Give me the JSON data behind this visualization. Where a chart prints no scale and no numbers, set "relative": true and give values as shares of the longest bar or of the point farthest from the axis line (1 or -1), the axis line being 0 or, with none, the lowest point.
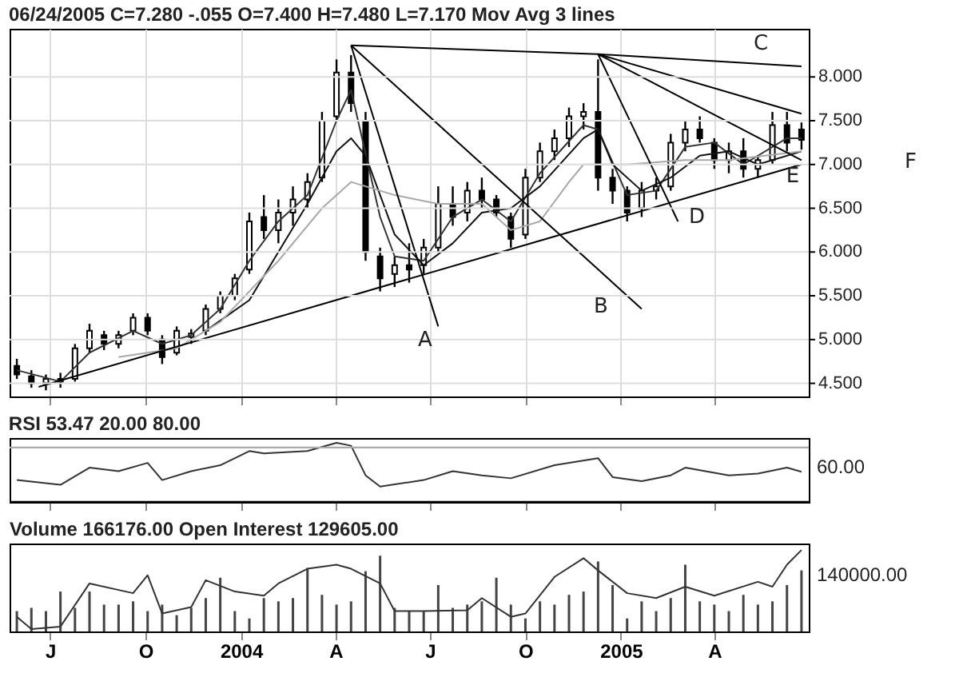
{
  "chart_data": [
    {
      "type": "candlestick",
      "title": "06/24/2005  C=7.280  -.055  O=7.400  H=7.480  L=7.170  Mov Avg 3 lines",
      "color": "#000000",
      "x": [
        "2003-05-30",
        "2003-06-13",
        "2003-06-27",
        "2003-07-11",
        "2003-07-25",
        "2003-08-08",
        "2003-08-22",
        "2003-09-05",
        "2003-09-19",
        "2003-10-03",
        "2003-10-17",
        "2003-10-31",
        "2003-11-14",
        "2003-11-28",
        "2003-12-12",
        "2003-12-26",
        "2004-01-09",
        "2004-01-23",
        "2004-02-06",
        "2004-02-20",
        "2004-03-05",
        "2004-03-19",
        "2004-04-02",
        "2004-04-16",
        "2004-04-30",
        "2004-05-14",
        "2004-05-28",
        "2004-06-11",
        "2004-06-25",
        "2004-07-09",
        "2004-07-23",
        "2004-08-06",
        "2004-08-20",
        "2004-09-03",
        "2004-09-17",
        "2004-10-01",
        "2004-10-15",
        "2004-10-29",
        "2004-11-12",
        "2004-11-26",
        "2004-12-10",
        "2004-12-24",
        "2005-01-07",
        "2005-01-21",
        "2005-02-04",
        "2005-02-18",
        "2005-03-04",
        "2005-03-18",
        "2005-04-01",
        "2005-04-15",
        "2005-04-29",
        "2005-05-13",
        "2005-05-27",
        "2005-06-10",
        "2005-06-24"
      ],
      "ohlc": [
        [
          4.7,
          4.78,
          4.55,
          4.6
        ],
        [
          4.58,
          4.65,
          4.45,
          4.5
        ],
        [
          4.5,
          4.6,
          4.42,
          4.55
        ],
        [
          4.55,
          4.62,
          4.45,
          4.52
        ],
        [
          4.55,
          4.95,
          4.52,
          4.9
        ],
        [
          4.9,
          5.18,
          4.85,
          5.1
        ],
        [
          5.05,
          5.1,
          4.88,
          4.95
        ],
        [
          4.95,
          5.1,
          4.9,
          5.05
        ],
        [
          5.1,
          5.3,
          5.05,
          5.25
        ],
        [
          5.25,
          5.3,
          5.05,
          5.1
        ],
        [
          5.0,
          5.05,
          4.72,
          4.8
        ],
        [
          4.85,
          5.15,
          4.82,
          5.1
        ],
        [
          5.03,
          5.12,
          4.95,
          5.07
        ],
        [
          5.1,
          5.4,
          5.05,
          5.35
        ],
        [
          5.35,
          5.55,
          5.3,
          5.5
        ],
        [
          5.5,
          5.75,
          5.45,
          5.7
        ],
        [
          5.8,
          6.45,
          5.75,
          6.35
        ],
        [
          6.4,
          6.65,
          6.15,
          6.25
        ],
        [
          6.25,
          6.6,
          6.1,
          6.45
        ],
        [
          6.45,
          6.75,
          6.3,
          6.6
        ],
        [
          6.6,
          6.9,
          6.5,
          6.8
        ],
        [
          6.85,
          7.6,
          6.8,
          7.5
        ],
        [
          7.55,
          8.2,
          7.5,
          8.05
        ],
        [
          8.05,
          8.25,
          7.6,
          7.7
        ],
        [
          7.5,
          7.6,
          5.9,
          6.0
        ],
        [
          5.95,
          6.05,
          5.55,
          5.7
        ],
        [
          5.75,
          5.95,
          5.6,
          5.85
        ],
        [
          5.85,
          6.1,
          5.65,
          5.8
        ],
        [
          5.85,
          6.15,
          5.75,
          6.05
        ],
        [
          6.05,
          6.75,
          6.0,
          6.55
        ],
        [
          6.55,
          6.75,
          6.3,
          6.4
        ],
        [
          6.45,
          6.8,
          6.35,
          6.7
        ],
        [
          6.7,
          6.85,
          6.5,
          6.6
        ],
        [
          6.6,
          6.65,
          6.4,
          6.45
        ],
        [
          6.4,
          6.45,
          6.05,
          6.15
        ],
        [
          6.2,
          6.95,
          6.15,
          6.85
        ],
        [
          6.85,
          7.25,
          6.8,
          7.15
        ],
        [
          7.15,
          7.4,
          7.05,
          7.3
        ],
        [
          7.3,
          7.65,
          7.2,
          7.55
        ],
        [
          7.55,
          7.7,
          7.4,
          7.6
        ],
        [
          7.6,
          8.2,
          6.7,
          6.85
        ],
        [
          6.85,
          6.95,
          6.55,
          6.7
        ],
        [
          6.7,
          6.75,
          6.35,
          6.45
        ],
        [
          6.5,
          6.8,
          6.4,
          6.7
        ],
        [
          6.7,
          6.85,
          6.6,
          6.75
        ],
        [
          6.75,
          7.35,
          6.7,
          7.25
        ],
        [
          7.25,
          7.5,
          7.15,
          7.4
        ],
        [
          7.4,
          7.55,
          7.25,
          7.3
        ],
        [
          7.25,
          7.3,
          6.95,
          7.05
        ],
        [
          7.05,
          7.25,
          6.9,
          7.15
        ],
        [
          7.15,
          7.3,
          6.85,
          6.95
        ],
        [
          6.95,
          7.1,
          6.85,
          7.05
        ],
        [
          7.05,
          7.6,
          7.0,
          7.45
        ],
        [
          7.45,
          7.6,
          7.15,
          7.25
        ],
        [
          7.4,
          7.48,
          7.17,
          7.28
        ]
      ],
      "series": [
        {
          "type": "line",
          "color": "#333333",
          "x": [
            "2003-05-30",
            "2003-07-11",
            "2003-08-08",
            "2003-09-19",
            "2003-10-17",
            "2003-11-14",
            "2003-12-12",
            "2004-01-09",
            "2004-02-06",
            "2004-03-05",
            "2004-04-02",
            "2004-04-16",
            "2004-05-14",
            "2004-05-28",
            "2004-06-25",
            "2004-07-23",
            "2004-08-20",
            "2004-09-17",
            "2004-10-15",
            "2004-11-26",
            "2004-12-10",
            "2005-01-07",
            "2005-02-04",
            "2005-03-04",
            "2005-04-01",
            "2005-04-29",
            "2005-06-10",
            "2005-06-24"
          ],
          "values": [
            4.65,
            4.52,
            4.85,
            5.1,
            4.95,
            5.05,
            5.35,
            5.9,
            6.35,
            6.65,
            7.5,
            7.85,
            6.4,
            5.95,
            5.9,
            6.4,
            6.6,
            6.35,
            6.9,
            7.45,
            7.4,
            6.65,
            6.7,
            7.2,
            7.25,
            7.0,
            7.3,
            7.3
          ]
        },
        {
          "type": "line",
          "color": "#111111",
          "x": [
            "2003-11-28",
            "2004-01-09",
            "2004-02-06",
            "2004-03-05",
            "2004-04-02",
            "2004-04-16",
            "2004-04-30",
            "2004-05-28",
            "2004-06-25",
            "2004-07-23",
            "2004-08-20",
            "2004-09-17",
            "2004-10-15",
            "2004-11-26",
            "2004-12-10",
            "2004-12-24",
            "2005-01-21",
            "2005-02-18",
            "2005-03-18",
            "2005-04-15",
            "2005-05-13",
            "2005-06-24"
          ],
          "values": [
            5.1,
            5.45,
            6.0,
            6.55,
            7.15,
            7.3,
            7.1,
            6.2,
            5.85,
            6.1,
            6.45,
            6.5,
            6.75,
            7.3,
            7.4,
            7.0,
            6.7,
            6.85,
            7.1,
            7.15,
            7.0,
            7.15
          ]
        },
        {
          "type": "line",
          "color": "#a8a8a8",
          "x": [
            "2003-09-05",
            "2003-10-31",
            "2003-12-12",
            "2004-02-06",
            "2004-03-19",
            "2004-04-16",
            "2004-05-28",
            "2004-07-09",
            "2004-08-20",
            "2004-09-17",
            "2004-10-15",
            "2004-11-12",
            "2004-11-26",
            "2005-01-07",
            "2005-03-04",
            "2005-04-15",
            "2005-06-24"
          ],
          "values": [
            4.8,
            4.9,
            5.2,
            5.9,
            6.5,
            6.8,
            6.65,
            6.55,
            6.55,
            6.25,
            6.35,
            6.8,
            7.0,
            7.0,
            7.05,
            7.05,
            7.15
          ]
        },
        {
          "type": "line",
          "color": "#000000",
          "x": [
            "2003-06-20",
            "2005-06-24"
          ],
          "values": [
            4.46,
            7.0
          ]
        },
        {
          "type": "line",
          "color": "#000000",
          "x": [
            "2004-04-16",
            "2004-07-09"
          ],
          "values": [
            8.36,
            5.15
          ]
        },
        {
          "type": "line",
          "color": "#000000",
          "x": [
            "2004-04-16",
            "2005-01-21"
          ],
          "values": [
            8.36,
            5.35
          ]
        },
        {
          "type": "line",
          "color": "#000000",
          "x": [
            "2004-04-16",
            "2004-12-10",
            "2005-06-24"
          ],
          "values": [
            8.36,
            8.26,
            8.12
          ]
        },
        {
          "type": "line",
          "color": "#000000",
          "x": [
            "2004-12-10",
            "2005-06-24"
          ],
          "values": [
            8.26,
            7.05
          ]
        },
        {
          "type": "line",
          "color": "#000000",
          "x": [
            "2004-12-10",
            "2005-06-24"
          ],
          "values": [
            8.26,
            7.58
          ]
        },
        {
          "type": "line",
          "color": "#000000",
          "x": [
            "2004-12-10",
            "2005-02-25"
          ],
          "values": [
            8.26,
            6.35
          ]
        }
      ],
      "xlim": [
        "2003-05-23",
        "2005-07-01"
      ],
      "xticks": [
        {
          "value": "2003-07-01",
          "label": null
        },
        {
          "value": "2003-10-01",
          "label": null
        },
        {
          "value": "2004-01-01",
          "label": null
        },
        {
          "value": "2004-04-01",
          "label": null
        },
        {
          "value": "2004-07-01",
          "label": null
        },
        {
          "value": "2004-10-01",
          "label": null
        },
        {
          "value": "2005-01-01",
          "label": null
        },
        {
          "value": "2005-04-01",
          "label": null
        }
      ],
      "ylim": [
        4.35,
        8.55
      ],
      "yticks": [
        {
          "value": 4.5,
          "label": "4.500"
        },
        {
          "value": 5,
          "label": "5.000"
        },
        {
          "value": 5.5,
          "label": "5.500"
        },
        {
          "value": 6,
          "label": "6.000"
        },
        {
          "value": 6.5,
          "label": "6.500"
        },
        {
          "value": 7,
          "label": "7.000"
        },
        {
          "value": 7.5,
          "label": "7.500"
        },
        {
          "value": 8,
          "label": "8.000"
        }
      ],
      "grid": true,
      "tick_labels": "y",
      "annotations": [
        "A",
        "B",
        "C",
        "D",
        "E",
        "F"
      ]
    },
    {
      "type": "line",
      "title": "RSI  53.47  20.00  80.00",
      "series": [
        {
          "color": "#333333",
          "x": [
            "2003-05-30",
            "2003-07-11",
            "2003-08-08",
            "2003-09-05",
            "2003-10-03",
            "2003-10-17",
            "2003-11-14",
            "2003-12-12",
            "2004-01-09",
            "2004-01-23",
            "2004-03-05",
            "2004-04-02",
            "2004-04-16",
            "2004-04-30",
            "2004-05-14",
            "2004-06-25",
            "2004-07-23",
            "2004-08-20",
            "2004-09-17",
            "2004-10-29",
            "2004-12-10",
            "2004-12-24",
            "2005-01-21",
            "2005-02-18",
            "2005-03-04",
            "2005-04-15",
            "2005-05-13",
            "2005-06-10",
            "2005-06-24"
          ],
          "values": [
            0.37,
            0.29,
            0.58,
            0.52,
            0.66,
            0.37,
            0.52,
            0.62,
            0.86,
            0.82,
            0.86,
            1,
            0.95,
            0.45,
            0.26,
            0.37,
            0.52,
            0.45,
            0.4,
            0.62,
            0.74,
            0.42,
            0.35,
            0.45,
            0.58,
            0.45,
            0.48,
            0.58,
            0.51
          ]
        }
      ],
      "relative": true,
      "annotations": [
        "60.00"
      ],
      "xlim": [
        "2003-05-23",
        "2005-07-01"
      ],
      "xticks": [
        {
          "value": "2003-07-01",
          "label": null
        },
        {
          "value": "2003-10-01",
          "label": null
        },
        {
          "value": "2004-01-01",
          "label": null
        },
        {
          "value": "2004-04-01",
          "label": null
        },
        {
          "value": "2004-07-01",
          "label": null
        },
        {
          "value": "2004-10-01",
          "label": null
        },
        {
          "value": "2005-01-01",
          "label": null
        },
        {
          "value": "2005-04-01",
          "label": null
        }
      ],
      "tick_labels": false,
      "ref_lines": [
        {
          "axis": "y",
          "value": 0.92,
          "color": "#aaaaaa"
        },
        {
          "axis": "y",
          "value": 0,
          "color": "#000000"
        }
      ]
    },
    {
      "type": "bar",
      "title": "Volume  166176.00  Open Interest  129605.00",
      "relative": true,
      "x": [
        "2003-05-30",
        "2003-06-13",
        "2003-06-27",
        "2003-07-11",
        "2003-07-25",
        "2003-08-08",
        "2003-08-22",
        "2003-09-05",
        "2003-09-19",
        "2003-10-03",
        "2003-10-17",
        "2003-10-31",
        "2003-11-14",
        "2003-11-28",
        "2003-12-12",
        "2003-12-26",
        "2004-01-09",
        "2004-01-23",
        "2004-02-06",
        "2004-02-20",
        "2004-03-05",
        "2004-03-19",
        "2004-04-02",
        "2004-04-16",
        "2004-04-30",
        "2004-05-14",
        "2004-05-28",
        "2004-06-11",
        "2004-06-25",
        "2004-07-09",
        "2004-07-23",
        "2004-08-06",
        "2004-08-20",
        "2004-09-03",
        "2004-09-17",
        "2004-10-01",
        "2004-10-15",
        "2004-10-29",
        "2004-11-12",
        "2004-11-26",
        "2004-12-10",
        "2004-12-24",
        "2005-01-07",
        "2005-01-21",
        "2005-02-04",
        "2005-02-18",
        "2005-03-04",
        "2005-03-18",
        "2005-04-01",
        "2005-04-15",
        "2005-04-29",
        "2005-05-13",
        "2005-05-27",
        "2005-06-10",
        "2005-06-24"
      ],
      "series": [
        {
          "type": "bar",
          "color": "#444444",
          "values": [
            0.25,
            0.29,
            0.25,
            0.49,
            0.29,
            0.49,
            0.33,
            0.33,
            0.37,
            0.25,
            0.33,
            0.2,
            0.29,
            0.41,
            0.66,
            0.25,
            0.16,
            0.41,
            0.37,
            0.41,
            0.78,
            0.45,
            0.33,
            0.37,
            0.74,
            0.93,
            0.29,
            0.25,
            0.25,
            0.57,
            0.29,
            0.33,
            0.37,
            0.66,
            0.33,
            0.16,
            0.37,
            0.33,
            0.45,
            0.49,
            0.86,
            0.57,
            0.16,
            0.37,
            0.25,
            0.41,
            0.82,
            0.37,
            0.33,
            0.25,
            0.45,
            0.33,
            0.37,
            0.57,
            0.75
          ]
        },
        {
          "type": "line",
          "color": "#333333",
          "x": [
            "2003-05-30",
            "2003-06-13",
            "2003-07-11",
            "2003-08-08",
            "2003-09-19",
            "2003-10-03",
            "2003-10-17",
            "2003-11-14",
            "2003-11-28",
            "2003-12-26",
            "2004-01-23",
            "2004-02-06",
            "2004-03-05",
            "2004-04-02",
            "2004-04-16",
            "2004-05-14",
            "2004-05-28",
            "2004-06-25",
            "2004-08-06",
            "2004-08-20",
            "2004-09-17",
            "2004-10-01",
            "2004-10-29",
            "2004-11-26",
            "2004-12-10",
            "2005-01-07",
            "2005-02-04",
            "2005-03-04",
            "2005-04-01",
            "2005-05-13",
            "2005-05-27",
            "2005-06-10",
            "2005-06-24"
          ],
          "values": [
            0.18,
            0.03,
            0.06,
            0.59,
            0.47,
            0.69,
            0.22,
            0.3,
            0.63,
            0.49,
            0.44,
            0.59,
            0.77,
            0.82,
            0.77,
            0.59,
            0.25,
            0.25,
            0.26,
            0.41,
            0.18,
            0.22,
            0.67,
            0.9,
            0.75,
            0.47,
            0.41,
            0.55,
            0.44,
            0.61,
            0.55,
            0.82,
            1
          ]
        }
      ],
      "xlim": [
        "2003-05-23",
        "2005-07-01"
      ],
      "xticks": [
        {
          "value": "2003-07-01",
          "label": "J"
        },
        {
          "value": "2003-10-01",
          "label": "O"
        },
        {
          "value": "2004-01-01",
          "label": "2004"
        },
        {
          "value": "2004-04-01",
          "label": "A"
        },
        {
          "value": "2004-07-01",
          "label": "J"
        },
        {
          "value": "2004-10-01",
          "label": "O"
        },
        {
          "value": "2005-01-01",
          "label": "2005"
        },
        {
          "value": "2005-04-01",
          "label": "A"
        }
      ],
      "tick_labels": "x",
      "annotations": [
        "140000.00"
      ]
    }
  ]
}
